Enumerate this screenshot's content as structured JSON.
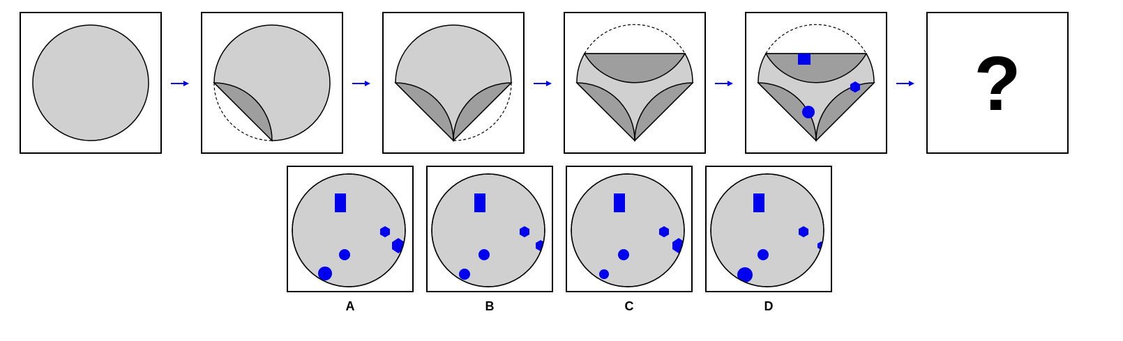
{
  "puzzle": {
    "question_mark": "?",
    "colors": {
      "paper": "#d0d0d0",
      "flap": "#9e9e9e",
      "hole": "#0000ee",
      "arrow": "#0000ee",
      "frame": "#000000"
    },
    "sequence": [
      {
        "step": 1,
        "state": "full-circle"
      },
      {
        "step": 2,
        "state": "fold-left-arc-to-bottom"
      },
      {
        "step": 3,
        "state": "fold-right-arc-to-bottom"
      },
      {
        "step": 4,
        "state": "fold-top-down"
      },
      {
        "step": 5,
        "state": "punched",
        "holes": [
          "square",
          "hexagon",
          "circle"
        ]
      },
      {
        "step": 6,
        "state": "unknown"
      }
    ],
    "options": [
      {
        "label": "A",
        "holes": [
          "tall-rectangle",
          "hexagon",
          "circle",
          "edge-notch-right",
          "edge-notch-bottom-left"
        ]
      },
      {
        "label": "B",
        "holes": [
          "tall-rectangle",
          "hexagon",
          "circle",
          "edge-notch-right",
          "edge-notch-bottom-left"
        ]
      },
      {
        "label": "C",
        "holes": [
          "tall-rectangle",
          "hexagon",
          "circle",
          "edge-notch-right",
          "edge-notch-bottom-left"
        ]
      },
      {
        "label": "D",
        "holes": [
          "tall-rectangle",
          "hexagon",
          "circle",
          "edge-notch-right",
          "edge-notch-bottom-left"
        ]
      }
    ]
  }
}
